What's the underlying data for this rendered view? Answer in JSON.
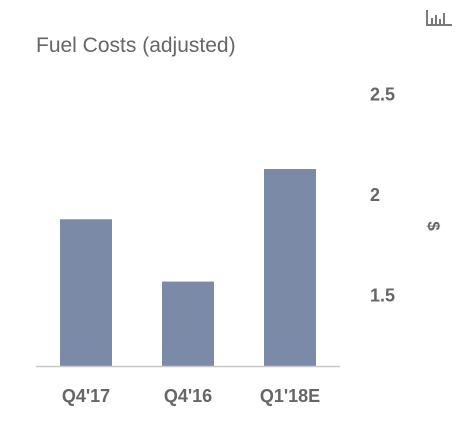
{
  "chart_data": {
    "type": "bar",
    "title": "Fuel Costs (adjusted)",
    "categories": [
      "Q4'17",
      "Q4'16",
      "Q1'18E"
    ],
    "values": [
      1.88,
      1.57,
      2.13
    ],
    "ylabel": "$",
    "ylim": [
      1.15,
      2.6
    ],
    "yticks": [
      "1.5",
      "2",
      "2.5"
    ],
    "ytick_values": [
      1.5,
      2.0,
      2.5
    ],
    "bar_color": "#7b8aa6",
    "axis_color": "#c8c8c8",
    "y_axis_side": "right",
    "grid": false,
    "legend": "none"
  },
  "toolbar": {
    "icon": "bar-chart-icon"
  }
}
